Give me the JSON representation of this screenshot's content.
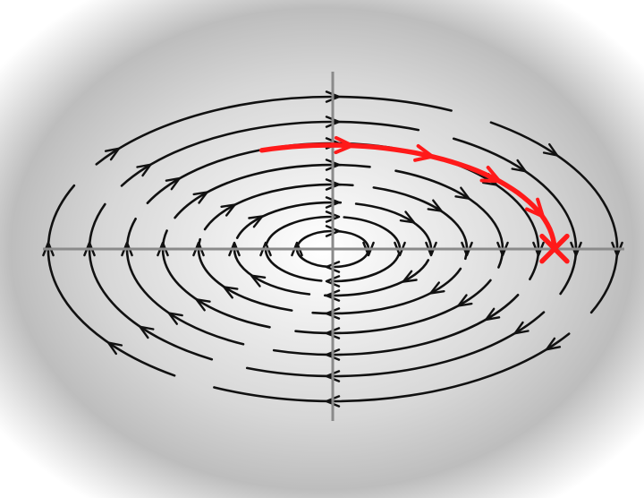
{
  "diagram": {
    "kind": "phase-portrait",
    "description_visible_text": "",
    "orbit_count": 8,
    "flow_direction": "clockwise",
    "colors": {
      "background_center": "#ffffff",
      "background_edge": "#9e9e9e",
      "orbit_stroke": "#111111",
      "axis_stroke": "#8a8a8a",
      "highlight_stroke": "#ff1a1a"
    },
    "highlight": {
      "style": "red trajectory segment ending in a cross marker",
      "end_marker": "cross",
      "arrow_count": 4
    }
  }
}
